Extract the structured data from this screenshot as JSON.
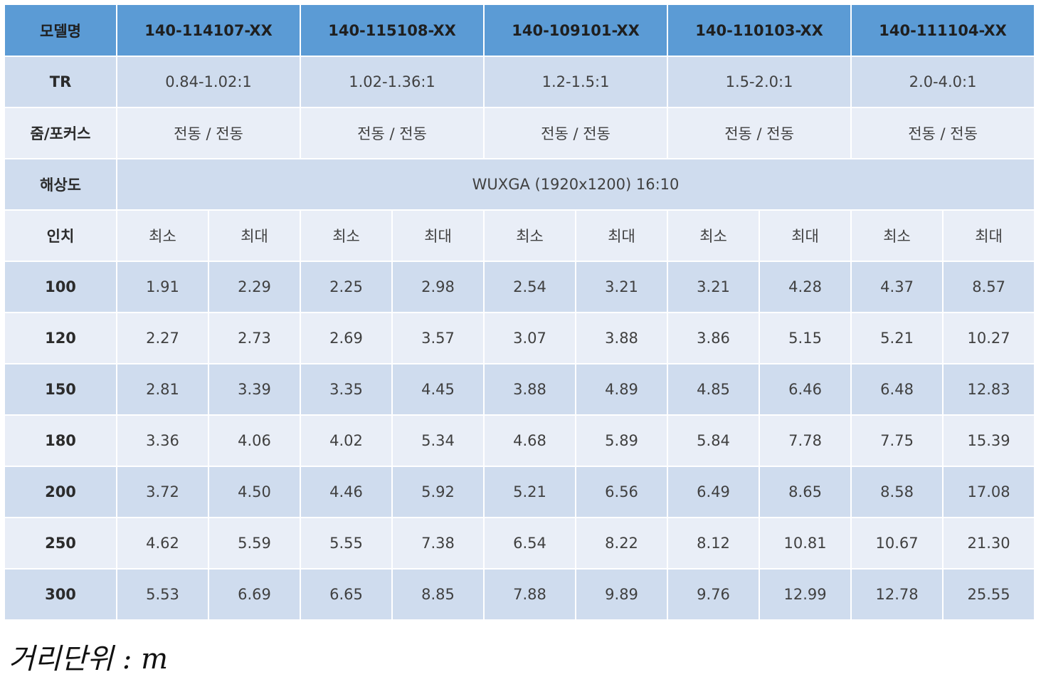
{
  "table": {
    "models": {
      "label": "모델명",
      "values": [
        "140-114107-XX",
        "140-115108-XX",
        "140-109101-XX",
        "140-110103-XX",
        "140-111104-XX"
      ]
    },
    "tr": {
      "label": "TR",
      "values": [
        "0.84-1.02:1",
        "1.02-1.36:1",
        "1.2-1.5:1",
        "1.5-2.0:1",
        "2.0-4.0:1"
      ]
    },
    "zoom_focus": {
      "label": "줌/포커스",
      "values": [
        "전동 / 전동",
        "전동 / 전동",
        "전동 / 전동",
        "전동 / 전동",
        "전동 / 전동"
      ]
    },
    "resolution": {
      "label": "해상도",
      "value": "WUXGA (1920x1200) 16:10"
    },
    "inch_header": {
      "label": "인치",
      "min_label": "최소",
      "max_label": "최대"
    },
    "distance_rows": [
      {
        "inch": "100",
        "values": [
          "1.91",
          "2.29",
          "2.25",
          "2.98",
          "2.54",
          "3.21",
          "3.21",
          "4.28",
          "4.37",
          "8.57"
        ]
      },
      {
        "inch": "120",
        "values": [
          "2.27",
          "2.73",
          "2.69",
          "3.57",
          "3.07",
          "3.88",
          "3.86",
          "5.15",
          "5.21",
          "10.27"
        ]
      },
      {
        "inch": "150",
        "values": [
          "2.81",
          "3.39",
          "3.35",
          "4.45",
          "3.88",
          "4.89",
          "4.85",
          "6.46",
          "6.48",
          "12.83"
        ]
      },
      {
        "inch": "180",
        "values": [
          "3.36",
          "4.06",
          "4.02",
          "5.34",
          "4.68",
          "5.89",
          "5.84",
          "7.78",
          "7.75",
          "15.39"
        ]
      },
      {
        "inch": "200",
        "values": [
          "3.72",
          "4.50",
          "4.46",
          "5.92",
          "5.21",
          "6.56",
          "6.49",
          "8.65",
          "8.58",
          "17.08"
        ]
      },
      {
        "inch": "250",
        "values": [
          "4.62",
          "5.59",
          "5.55",
          "7.38",
          "6.54",
          "8.22",
          "8.12",
          "10.81",
          "10.67",
          "21.30"
        ]
      },
      {
        "inch": "300",
        "values": [
          "5.53",
          "6.69",
          "6.65",
          "8.85",
          "7.88",
          "9.89",
          "9.76",
          "12.99",
          "12.78",
          "25.55"
        ]
      }
    ]
  },
  "footer": {
    "unit_note": "거리단위 : m"
  },
  "colors": {
    "header_blue": "#5b9bd5",
    "row_dark": "#cfdcee",
    "row_light": "#e9eef7"
  }
}
